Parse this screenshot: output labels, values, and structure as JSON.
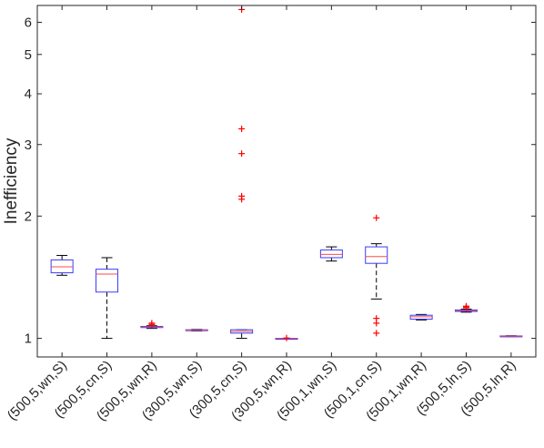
{
  "chart_data": {
    "type": "box",
    "ylabel": "Inefficiency",
    "xlabel": "",
    "yscale": "log",
    "ylim": [
      0.9,
      6.6
    ],
    "yticks": [
      1,
      2,
      3,
      4,
      5,
      6
    ],
    "ytick_labels": [
      "1",
      "2",
      "3",
      "4",
      "5",
      "6"
    ],
    "grid": false,
    "colors": {
      "box": "#3b3bff",
      "median": "#ff4b4b",
      "whisker": "#000000",
      "outlier": "#ff0000",
      "axis": "#262626"
    },
    "categories": [
      "(500,5,wn,S)",
      "(500,5,cn,S)",
      "(500,5,wn,R)",
      "(300,5,wn,S)",
      "(300,5,cn,S)",
      "(300,5,wn,R)",
      "(500,1,wn,S)",
      "(500,1,cn,S)",
      "(500,1,wn,R)",
      "(500,5,ln,S)",
      "(500,5,ln,R)"
    ],
    "boxes": [
      {
        "whislo": 1.43,
        "q1": 1.45,
        "med": 1.5,
        "q3": 1.56,
        "whishi": 1.6,
        "fliers": []
      },
      {
        "whislo": 1.0,
        "q1": 1.3,
        "med": 1.44,
        "q3": 1.48,
        "whishi": 1.58,
        "fliers": []
      },
      {
        "whislo": 1.058,
        "q1": 1.063,
        "med": 1.066,
        "q3": 1.07,
        "whishi": 1.074,
        "fliers": [
          1.082,
          1.09
        ]
      },
      {
        "whislo": 1.043,
        "q1": 1.046,
        "med": 1.048,
        "q3": 1.05,
        "whishi": 1.052,
        "fliers": []
      },
      {
        "whislo": 1.0,
        "q1": 1.03,
        "med": 1.04,
        "q3": 1.05,
        "whishi": 1.05,
        "fliers": [
          2.2,
          2.24,
          2.85,
          3.28,
          6.45
        ]
      },
      {
        "whislo": 1.0,
        "q1": 1.0,
        "med": 1.0,
        "q3": 1.0,
        "whishi": 1.0,
        "fliers": [
          1.002
        ]
      },
      {
        "whislo": 1.55,
        "q1": 1.58,
        "med": 1.61,
        "q3": 1.65,
        "whishi": 1.68,
        "fliers": []
      },
      {
        "whislo": 1.25,
        "q1": 1.53,
        "med": 1.59,
        "q3": 1.68,
        "whishi": 1.71,
        "fliers": [
          1.03,
          1.09,
          1.12,
          1.98
        ]
      },
      {
        "whislo": 1.11,
        "q1": 1.115,
        "med": 1.13,
        "q3": 1.14,
        "whishi": 1.145,
        "fliers": []
      },
      {
        "whislo": 1.16,
        "q1": 1.165,
        "med": 1.17,
        "q3": 1.175,
        "whishi": 1.18,
        "fliers": [
          1.19,
          1.195,
          1.2
        ]
      },
      {
        "whislo": 1.01,
        "q1": 1.012,
        "med": 1.013,
        "q3": 1.014,
        "whishi": 1.015,
        "fliers": []
      }
    ]
  }
}
